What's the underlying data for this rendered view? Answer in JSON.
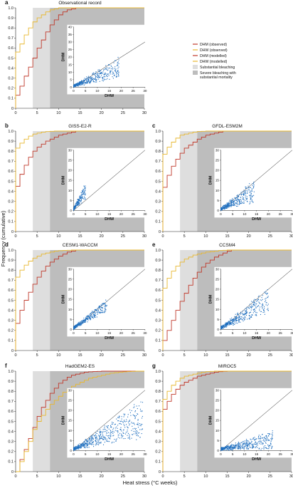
{
  "figure": {
    "xlabel": "Heat stress (°C weeks)",
    "ylabel": "Frequency (cumulative)"
  },
  "legend": {
    "items": [
      {
        "label": "DHM (observed)",
        "kind": "line",
        "color": "#c0392b"
      },
      {
        "label": "DHW (observed)",
        "kind": "line",
        "color": "#e8b830"
      },
      {
        "label": "DHM (modelled)",
        "kind": "line",
        "color": "#c0392b"
      },
      {
        "label": "DHW (modelled)",
        "kind": "line",
        "color": "#e8b830"
      },
      {
        "label": "Substantial bleaching",
        "kind": "box",
        "color": "#dedede"
      },
      {
        "label": "Severe bleaching with substantial mortality",
        "kind": "box",
        "color": "#bdbdbd"
      }
    ]
  },
  "chart_data": [
    {
      "panel": "a",
      "title": "Observational record",
      "type": "line",
      "xlim": [
        0,
        30
      ],
      "ylim": [
        0,
        1.0
      ],
      "xticks": [
        0,
        5,
        10,
        15,
        20,
        25,
        30
      ],
      "yticks": [
        0,
        0.1,
        0.2,
        0.3,
        0.4,
        0.5,
        0.6,
        0.7,
        0.8,
        0.9,
        1.0
      ],
      "bands": [
        {
          "from": 4,
          "to": 8,
          "label": "Substantial bleaching"
        },
        {
          "from": 8,
          "to": 30,
          "label": "Severe bleaching with substantial mortality"
        }
      ],
      "series": [
        {
          "name": "DHM (observed)",
          "color": "#c0392b",
          "x": [
            0,
            1,
            2,
            3,
            4,
            5,
            6,
            7,
            8,
            9,
            10,
            11,
            12,
            13,
            14
          ],
          "y": [
            0.13,
            0.22,
            0.32,
            0.41,
            0.5,
            0.6,
            0.68,
            0.76,
            0.83,
            0.88,
            0.93,
            0.96,
            0.98,
            0.99,
            1.0
          ]
        },
        {
          "name": "DHW (observed)",
          "color": "#e8b830",
          "x": [
            0,
            1,
            2,
            3,
            4,
            5,
            6,
            7,
            8,
            9,
            10
          ],
          "y": [
            0.56,
            0.64,
            0.73,
            0.8,
            0.86,
            0.9,
            0.93,
            0.96,
            0.98,
            0.99,
            1.0
          ]
        }
      ],
      "inset": {
        "xlim": [
          0,
          30
        ],
        "ylim": [
          0,
          40
        ],
        "xticks": [
          0,
          5,
          10,
          15,
          20,
          25,
          30
        ],
        "yticks": [
          0,
          5,
          10,
          15,
          20,
          25,
          30,
          35,
          40
        ],
        "xlabel": "DHW",
        "ylabel": "DHM",
        "scatter": {
          "xmax": 19,
          "slope_lo": 0.3,
          "slope_hi": 1.0,
          "color": "#1f6fbf"
        }
      }
    },
    {
      "panel": "b",
      "title": "GISS-E2-R",
      "type": "line",
      "xlim": [
        0,
        30
      ],
      "ylim": [
        0,
        1.0
      ],
      "xticks": [
        0,
        5,
        10,
        15,
        20,
        25,
        30
      ],
      "yticks": [
        0,
        0.1,
        0.2,
        0.3,
        0.4,
        0.5,
        0.6,
        0.7,
        0.8,
        0.9,
        1.0
      ],
      "bands": [
        {
          "from": 4,
          "to": 8
        },
        {
          "from": 8,
          "to": 30
        }
      ],
      "series": [
        {
          "name": "DHM (modelled)",
          "color": "#c0392b",
          "x": [
            0,
            1,
            2,
            3,
            4,
            5,
            6,
            7,
            8,
            9,
            10,
            11,
            12,
            13,
            14
          ],
          "y": [
            0.45,
            0.57,
            0.66,
            0.74,
            0.8,
            0.84,
            0.87,
            0.9,
            0.92,
            0.94,
            0.96,
            0.97,
            0.98,
            0.99,
            1.0
          ]
        },
        {
          "name": "DHW (modelled)",
          "color": "#e8b830",
          "x": [
            0,
            1,
            2,
            3,
            4,
            5,
            6,
            7,
            8,
            9
          ],
          "y": [
            0.83,
            0.88,
            0.92,
            0.95,
            0.97,
            0.98,
            0.99,
            0.995,
            0.998,
            1.0
          ]
        }
      ],
      "inset": {
        "xlim": [
          0,
          30
        ],
        "ylim": [
          0,
          30
        ],
        "xticks": [
          0,
          5,
          10,
          15,
          20,
          25,
          30
        ],
        "yticks": [
          0,
          5,
          10,
          15,
          20,
          25,
          30
        ],
        "xlabel": "DHW",
        "ylabel": "DHM",
        "scatter": {
          "xmax": 5,
          "slope_lo": 1.0,
          "slope_hi": 2.5,
          "color": "#1f6fbf"
        }
      }
    },
    {
      "panel": "c",
      "title": "GFDL-ESM2M",
      "type": "line",
      "xlim": [
        0,
        30
      ],
      "ylim": [
        0,
        1.0
      ],
      "xticks": [
        0,
        5,
        10,
        15,
        20,
        25,
        30
      ],
      "yticks": [
        0,
        0.1,
        0.2,
        0.3,
        0.4,
        0.5,
        0.6,
        0.7,
        0.8,
        0.9,
        1.0
      ],
      "bands": [
        {
          "from": 4,
          "to": 8
        },
        {
          "from": 8,
          "to": 30
        }
      ],
      "series": [
        {
          "name": "DHM (modelled)",
          "color": "#c0392b",
          "x": [
            0,
            1,
            2,
            3,
            4,
            5,
            6,
            7,
            8,
            9,
            10,
            11,
            12,
            13,
            14
          ],
          "y": [
            0.44,
            0.56,
            0.65,
            0.72,
            0.78,
            0.83,
            0.86,
            0.89,
            0.92,
            0.94,
            0.96,
            0.97,
            0.98,
            0.99,
            1.0
          ]
        },
        {
          "name": "DHW (modelled)",
          "color": "#e8b830",
          "x": [
            0,
            1,
            2,
            3,
            4,
            5,
            6,
            7,
            8,
            9,
            10
          ],
          "y": [
            0.77,
            0.84,
            0.89,
            0.93,
            0.96,
            0.97,
            0.98,
            0.99,
            0.995,
            0.998,
            1.0
          ]
        }
      ],
      "inset": {
        "xlim": [
          0,
          30
        ],
        "ylim": [
          0,
          30
        ],
        "xticks": [
          0,
          5,
          10,
          15,
          20,
          25,
          30
        ],
        "yticks": [
          0,
          5,
          10,
          15,
          20,
          25,
          30
        ],
        "xlabel": "DHW",
        "ylabel": "DHM",
        "scatter": {
          "xmax": 14,
          "slope_lo": 0.25,
          "slope_hi": 1.0,
          "color": "#1f6fbf"
        }
      }
    },
    {
      "panel": "d",
      "title": "CESM1-WACCM",
      "type": "line",
      "xlim": [
        0,
        30
      ],
      "ylim": [
        0,
        1.0
      ],
      "xticks": [
        0,
        5,
        10,
        15,
        20,
        25,
        30
      ],
      "yticks": [
        0,
        0.1,
        0.2,
        0.3,
        0.4,
        0.5,
        0.6,
        0.7,
        0.8,
        0.9,
        1.0
      ],
      "bands": [
        {
          "from": 4,
          "to": 8
        },
        {
          "from": 8,
          "to": 30
        }
      ],
      "series": [
        {
          "name": "DHM (modelled)",
          "color": "#c0392b",
          "x": [
            0,
            1,
            2,
            3,
            4,
            5,
            6,
            7,
            8,
            9,
            10,
            11,
            12,
            13,
            14
          ],
          "y": [
            0.27,
            0.4,
            0.5,
            0.58,
            0.66,
            0.73,
            0.79,
            0.84,
            0.88,
            0.91,
            0.94,
            0.96,
            0.98,
            0.99,
            1.0
          ]
        },
        {
          "name": "DHW (modelled)",
          "color": "#e8b830",
          "x": [
            0,
            1,
            2,
            3,
            4,
            5,
            6,
            7,
            8,
            9,
            10,
            11,
            12,
            13
          ],
          "y": [
            0.73,
            0.8,
            0.85,
            0.89,
            0.92,
            0.94,
            0.96,
            0.97,
            0.98,
            0.99,
            0.993,
            0.996,
            0.998,
            1.0
          ]
        }
      ],
      "inset": {
        "xlim": [
          0,
          30
        ],
        "ylim": [
          0,
          30
        ],
        "xticks": [
          0,
          5,
          10,
          15,
          20,
          25,
          30
        ],
        "yticks": [
          0,
          5,
          10,
          15,
          20,
          25,
          30
        ],
        "xlabel": "DHW",
        "ylabel": "DHM",
        "scatter": {
          "xmax": 14,
          "slope_lo": 0.6,
          "slope_hi": 1.0,
          "color": "#1f6fbf"
        }
      }
    },
    {
      "panel": "e",
      "title": "CCSM4",
      "type": "line",
      "xlim": [
        0,
        30
      ],
      "ylim": [
        0,
        1.0
      ],
      "xticks": [
        0,
        5,
        10,
        15,
        20,
        25,
        30
      ],
      "yticks": [
        0,
        0.1,
        0.2,
        0.3,
        0.4,
        0.5,
        0.6,
        0.7,
        0.8,
        0.9,
        1.0
      ],
      "bands": [
        {
          "from": 4,
          "to": 8
        },
        {
          "from": 8,
          "to": 30
        }
      ],
      "series": [
        {
          "name": "DHM (modelled)",
          "color": "#c0392b",
          "x": [
            0,
            1,
            2,
            3,
            4,
            5,
            6,
            7,
            8,
            9,
            10,
            11,
            12,
            13,
            14,
            15,
            16
          ],
          "y": [
            0.1,
            0.2,
            0.3,
            0.4,
            0.49,
            0.57,
            0.65,
            0.72,
            0.78,
            0.83,
            0.87,
            0.9,
            0.93,
            0.95,
            0.97,
            0.99,
            1.0
          ]
        },
        {
          "name": "DHW (modelled)",
          "color": "#e8b830",
          "x": [
            0,
            1,
            2,
            3,
            4,
            5,
            6,
            7,
            8,
            9,
            10,
            11,
            12,
            13,
            14,
            15
          ],
          "y": [
            0.62,
            0.72,
            0.79,
            0.84,
            0.88,
            0.91,
            0.93,
            0.95,
            0.96,
            0.97,
            0.98,
            0.985,
            0.99,
            0.995,
            0.998,
            1.0
          ]
        }
      ],
      "inset": {
        "xlim": [
          0,
          30
        ],
        "ylim": [
          0,
          30
        ],
        "xticks": [
          0,
          5,
          10,
          15,
          20,
          25,
          30
        ],
        "yticks": [
          0,
          5,
          10,
          15,
          20,
          25,
          30
        ],
        "xlabel": "DHW",
        "ylabel": "DHM",
        "scatter": {
          "xmax": 20,
          "slope_lo": 0.4,
          "slope_hi": 1.0,
          "color": "#1f6fbf"
        }
      }
    },
    {
      "panel": "f",
      "title": "HadGEM2-ES",
      "type": "line",
      "xlim": [
        0,
        30
      ],
      "ylim": [
        0,
        1.0
      ],
      "xticks": [
        0,
        5,
        10,
        15,
        20,
        25,
        30
      ],
      "yticks": [
        0,
        0.1,
        0.2,
        0.3,
        0.4,
        0.5,
        0.6,
        0.7,
        0.8,
        0.9,
        1.0
      ],
      "bands": [
        {
          "from": 4,
          "to": 8
        },
        {
          "from": 8,
          "to": 30
        }
      ],
      "series": [
        {
          "name": "DHM (modelled)",
          "color": "#c0392b",
          "x": [
            0,
            1,
            2,
            3,
            4,
            5,
            6,
            7,
            8,
            9,
            10,
            11,
            12,
            13,
            14,
            15,
            16,
            17,
            18,
            19,
            20
          ],
          "y": [
            0.0,
            0.12,
            0.22,
            0.33,
            0.44,
            0.55,
            0.64,
            0.71,
            0.78,
            0.83,
            0.88,
            0.91,
            0.94,
            0.96,
            0.97,
            0.98,
            0.99,
            0.993,
            0.996,
            0.998,
            1.0
          ]
        },
        {
          "name": "DHW (modelled)",
          "color": "#e8b830",
          "x": [
            0,
            1,
            2,
            3,
            4,
            5,
            6,
            7,
            8,
            9,
            10,
            11,
            12,
            13,
            14,
            15,
            16,
            17,
            18,
            19,
            20,
            21,
            22,
            23,
            24,
            25,
            26,
            27,
            28
          ],
          "y": [
            0.0,
            0.1,
            0.2,
            0.3,
            0.42,
            0.5,
            0.56,
            0.62,
            0.67,
            0.71,
            0.75,
            0.79,
            0.82,
            0.85,
            0.87,
            0.89,
            0.91,
            0.93,
            0.94,
            0.95,
            0.96,
            0.97,
            0.98,
            0.985,
            0.99,
            0.993,
            0.996,
            0.998,
            1.0
          ]
        }
      ],
      "inset": {
        "xlim": [
          0,
          30
        ],
        "ylim": [
          0,
          30
        ],
        "xticks": [
          0,
          5,
          10,
          15,
          20,
          25,
          30
        ],
        "yticks": [
          0,
          5,
          10,
          15,
          20,
          25,
          30
        ],
        "xlabel": "DHW",
        "ylabel": "DHM",
        "scatter": {
          "xmax": 29,
          "slope_lo": 0.2,
          "slope_hi": 0.85,
          "color": "#1f6fbf"
        }
      }
    },
    {
      "panel": "g",
      "title": "MIROC5",
      "type": "line",
      "xlim": [
        0,
        30
      ],
      "ylim": [
        0,
        1.0
      ],
      "xticks": [
        0,
        5,
        10,
        15,
        20,
        25,
        30
      ],
      "yticks": [
        0,
        0.1,
        0.2,
        0.3,
        0.4,
        0.5,
        0.6,
        0.7,
        0.8,
        0.9,
        1.0
      ],
      "bands": [
        {
          "from": 4,
          "to": 8
        },
        {
          "from": 8,
          "to": 30
        }
      ],
      "series": [
        {
          "name": "DHM (modelled)",
          "color": "#c0392b",
          "x": [
            0,
            1,
            2,
            3,
            4,
            5,
            6,
            7,
            8,
            9,
            10,
            11,
            12,
            13,
            14,
            15
          ],
          "y": [
            0.62,
            0.7,
            0.77,
            0.82,
            0.86,
            0.89,
            0.91,
            0.93,
            0.95,
            0.96,
            0.97,
            0.98,
            0.99,
            0.995,
            0.998,
            1.0
          ]
        },
        {
          "name": "DHW (modelled)",
          "color": "#e8b830",
          "x": [
            0,
            1,
            2,
            3,
            4,
            5,
            6,
            7,
            8,
            9,
            10,
            11,
            12
          ],
          "y": [
            0.72,
            0.8,
            0.86,
            0.9,
            0.93,
            0.95,
            0.96,
            0.97,
            0.98,
            0.99,
            0.995,
            0.998,
            1.0
          ]
        }
      ],
      "inset": {
        "xlim": [
          0,
          30
        ],
        "ylim": [
          0,
          30
        ],
        "xticks": [
          0,
          5,
          10,
          15,
          20,
          25,
          30
        ],
        "yticks": [
          0,
          5,
          10,
          15,
          20,
          25,
          30
        ],
        "xlabel": "DHW",
        "ylabel": "DHM",
        "scatter": {
          "xmax": 22,
          "slope_lo": 0.0,
          "slope_hi": 0.4,
          "color": "#1f6fbf"
        }
      }
    }
  ]
}
